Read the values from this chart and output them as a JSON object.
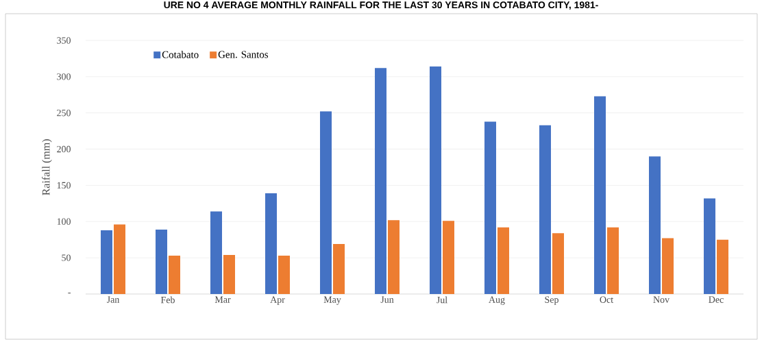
{
  "chart_data": {
    "type": "bar",
    "title": "URE NO 4 AVERAGE MONTHLY RAINFALL FOR THE LAST 30 YEARS IN COTABATO CITY, 1981-",
    "ylabel": "Raifall (mm)",
    "categories": [
      "Jan",
      "Feb",
      "Mar",
      "Apr",
      "May",
      "Jun",
      "Jul",
      "Aug",
      "Sep",
      "Oct",
      "Nov",
      "Dec"
    ],
    "series": [
      {
        "name": "Cotabato",
        "color": "#4472c4",
        "values": [
          88,
          89,
          114,
          139,
          252,
          312,
          314,
          238,
          233,
          273,
          190,
          132
        ]
      },
      {
        "name": "Gen. Santos",
        "color": "#ed7d31",
        "values": [
          96,
          53,
          54,
          53,
          69,
          102,
          101,
          92,
          84,
          92,
          77,
          75
        ]
      }
    ],
    "ylim": [
      0,
      350
    ],
    "yticks": [
      {
        "value": 0,
        "label": "-"
      },
      50,
      100,
      150,
      200,
      250,
      300,
      350
    ],
    "grid": "y",
    "legend": "top left"
  }
}
